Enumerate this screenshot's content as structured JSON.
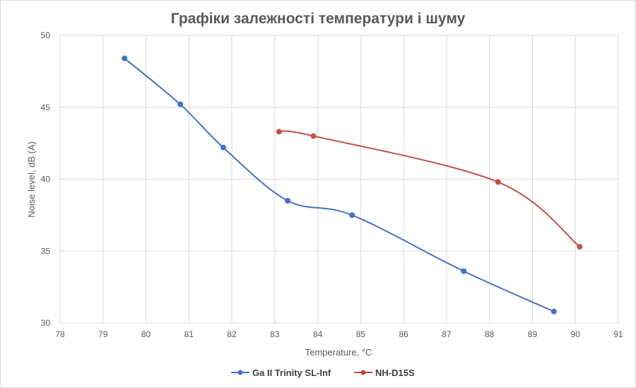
{
  "chart_data": {
    "type": "line",
    "title": "Графіки залежності температури і шуму",
    "xlabel": "Temperature, °C",
    "ylabel": "Noise level, dB (A)",
    "xlim": [
      78,
      91
    ],
    "ylim": [
      30,
      50
    ],
    "x_ticks": [
      "78",
      "79",
      "80",
      "81",
      "82",
      "83",
      "84",
      "85",
      "86",
      "87",
      "88",
      "89",
      "90",
      "91"
    ],
    "y_ticks": [
      "30",
      "35",
      "40",
      "45",
      "50"
    ],
    "grid": true,
    "smooth": true,
    "legend_position": "bottom",
    "series": [
      {
        "name": "Ga II Trinity SL-Inf",
        "color": "#4472c4",
        "points": [
          [
            79.5,
            48.4
          ],
          [
            80.8,
            45.2
          ],
          [
            81.8,
            42.2
          ],
          [
            83.3,
            38.5
          ],
          [
            84.8,
            37.5
          ],
          [
            87.4,
            33.6
          ],
          [
            89.5,
            30.8
          ]
        ]
      },
      {
        "name": "NH-D15S",
        "color": "#c0504d",
        "points": [
          [
            83.1,
            43.3
          ],
          [
            83.9,
            43.0
          ],
          [
            88.2,
            39.8
          ],
          [
            90.1,
            35.3
          ]
        ]
      }
    ]
  }
}
